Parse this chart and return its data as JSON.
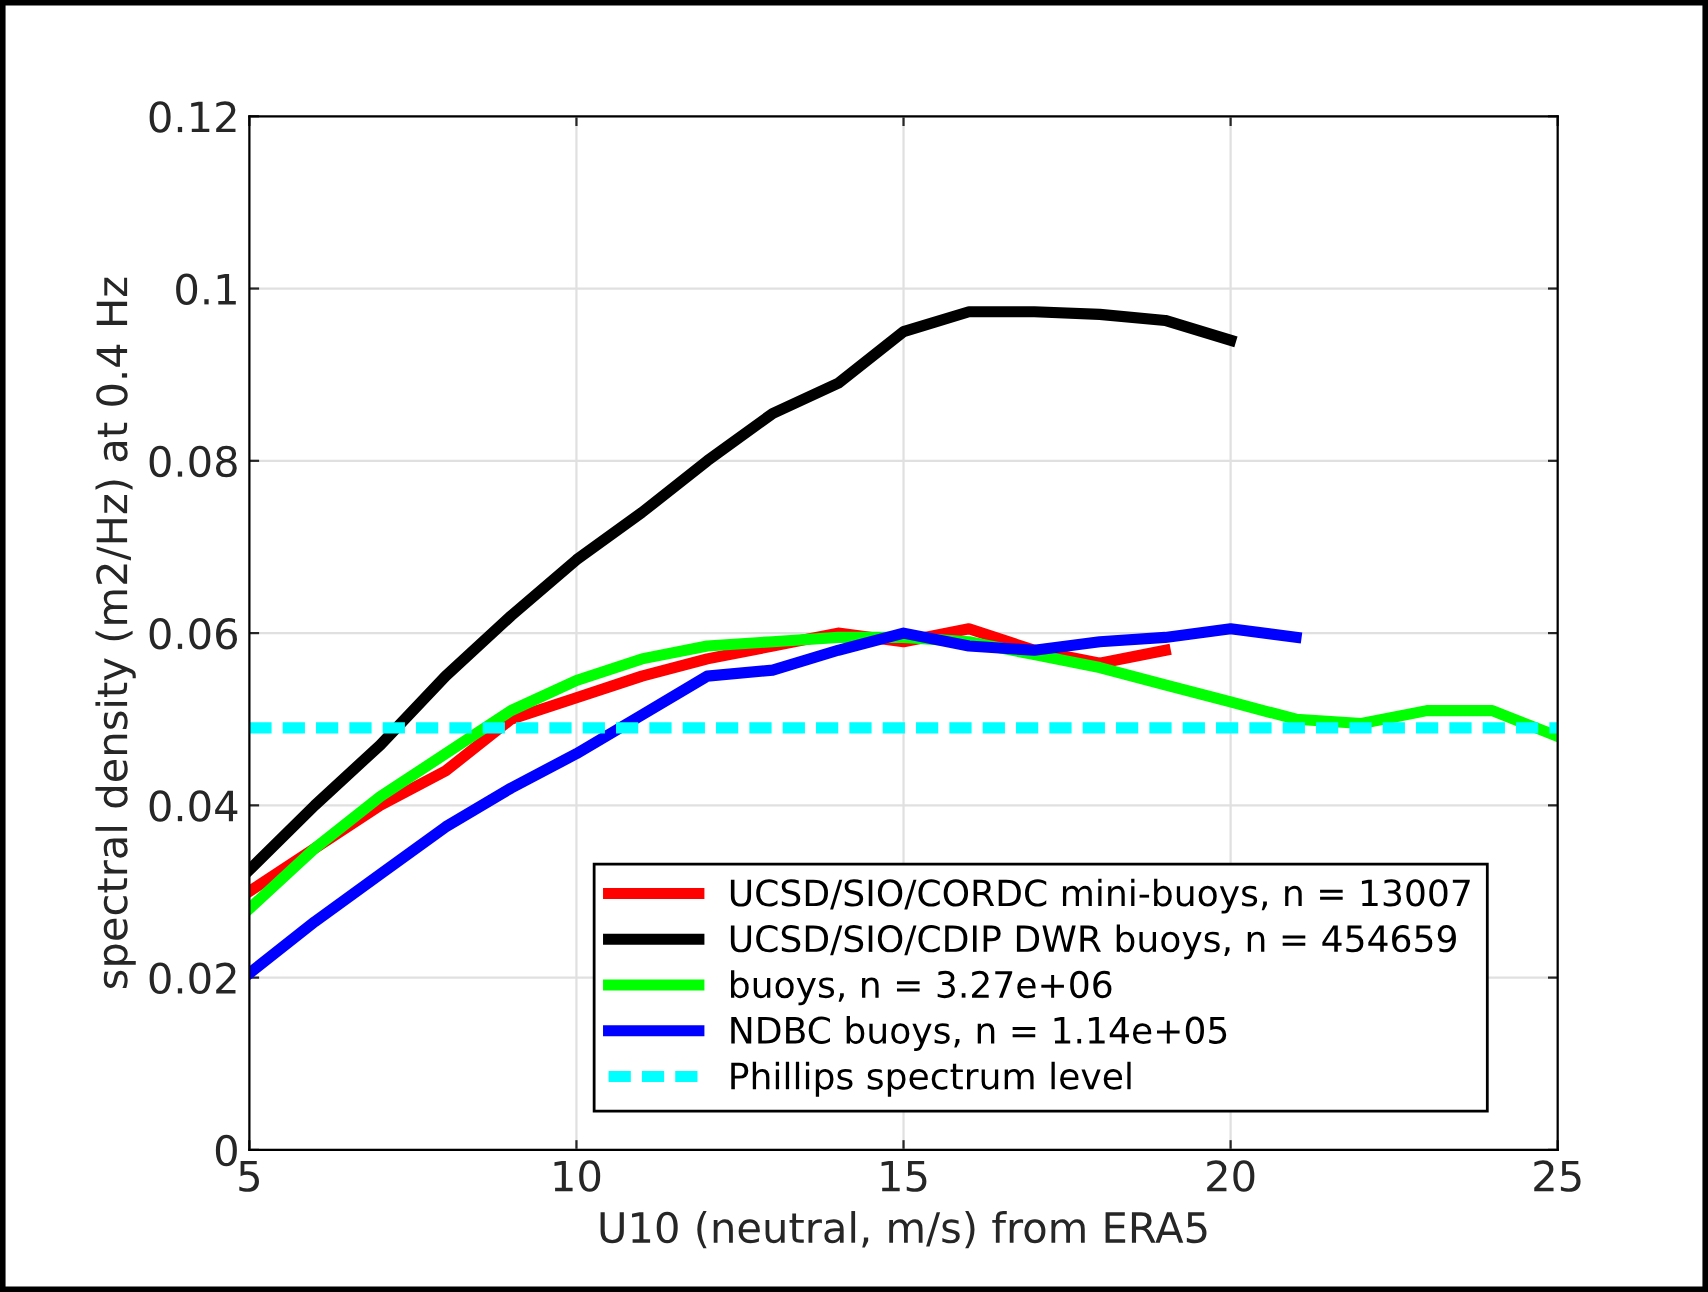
{
  "chart_data": {
    "type": "line",
    "xlabel": "U10 (neutral, m/s) from ERA5",
    "ylabel": "spectral density (m2/Hz) at 0.4 Hz",
    "xlim": [
      5,
      25
    ],
    "xticks": [
      5,
      10,
      15,
      20,
      25
    ],
    "ylim": [
      0,
      0.12
    ],
    "yticks": [
      0,
      0.02,
      0.04,
      0.06,
      0.08,
      0.1,
      0.12
    ],
    "grid": true,
    "legend": "bottom right",
    "line_style": "solid",
    "marker": "none",
    "series": [
      {
        "name": "UCSD/SIO/CORDC mini-buoys, n = 13007",
        "color": "#ff0000",
        "x": [
          5,
          6,
          7,
          8,
          9,
          10,
          11,
          12,
          13,
          14,
          15,
          16,
          17,
          18,
          19
        ],
        "values": [
          0.03,
          0.035,
          0.04,
          0.044,
          0.05,
          0.0525,
          0.055,
          0.057,
          0.0585,
          0.06,
          0.059,
          0.0605,
          0.058,
          0.0565,
          0.058
        ]
      },
      {
        "name": "UCSD/SIO/CDIP DWR buoys, n = 454659",
        "color": "#000000",
        "x": [
          5,
          6,
          7,
          8,
          9,
          10,
          11,
          12,
          13,
          14,
          15,
          16,
          17,
          18,
          19,
          20
        ],
        "values": [
          0.0325,
          0.04,
          0.047,
          0.055,
          0.062,
          0.0685,
          0.074,
          0.08,
          0.0855,
          0.089,
          0.095,
          0.0973,
          0.0973,
          0.097,
          0.0963,
          0.094
        ]
      },
      {
        "name": "buoys, n = 3.27e+06",
        "color": "#00ff00",
        "x": [
          5,
          6,
          7,
          8,
          9,
          10,
          11,
          12,
          13,
          14,
          15,
          16,
          17,
          18,
          19,
          20,
          21,
          22,
          23,
          24,
          25
        ],
        "values": [
          0.028,
          0.035,
          0.041,
          0.046,
          0.051,
          0.0545,
          0.057,
          0.0585,
          0.059,
          0.0595,
          0.0595,
          0.059,
          0.0575,
          0.056,
          0.054,
          0.052,
          0.05,
          0.0495,
          0.051,
          0.051,
          0.048
        ]
      },
      {
        "name": "NDBC buoys, n = 1.14e+05",
        "color": "#0000ff",
        "x": [
          5,
          6,
          7,
          8,
          9,
          10,
          11,
          12,
          13,
          14,
          15,
          16,
          17,
          18,
          19,
          20,
          21
        ],
        "values": [
          0.0205,
          0.0265,
          0.032,
          0.0375,
          0.042,
          0.046,
          0.0505,
          0.055,
          0.0557,
          0.058,
          0.06,
          0.0585,
          0.058,
          0.059,
          0.0595,
          0.0605,
          0.0595
        ]
      },
      {
        "name": "Phillips spectrum level",
        "color": "#00ffff",
        "line_style": "dashed",
        "x": [
          5,
          25
        ],
        "values": [
          0.049,
          0.049
        ]
      }
    ]
  }
}
